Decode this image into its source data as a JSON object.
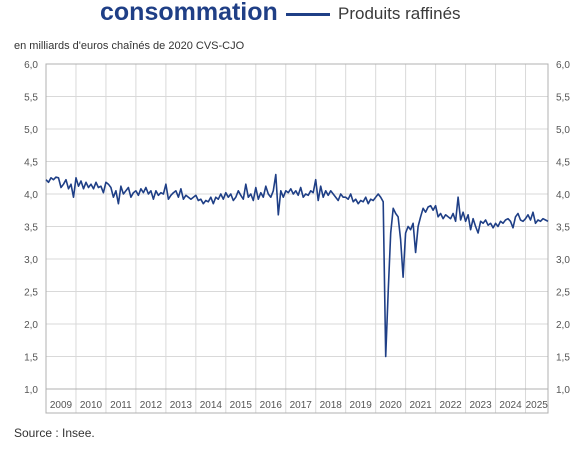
{
  "header": {
    "title": "consommation",
    "legend_label": "Produits raffinés"
  },
  "unit_label": "en milliards d'euros chaînés de 2020 CVS-CJO",
  "source": "Source : Insee.",
  "colors": {
    "series": "#1f3f86",
    "grid": "#d9d9d9",
    "axis_text": "#555555",
    "frame": "#b0b0b0"
  },
  "chart_data": {
    "type": "line",
    "x_start": "2009-01",
    "ylim": [
      1.0,
      6.0
    ],
    "y_ticks": [
      "1,0",
      "1,5",
      "2,0",
      "2,5",
      "3,0",
      "3,5",
      "4,0",
      "4,5",
      "5,0",
      "5,5",
      "6,0"
    ],
    "x_tick_labels": [
      "2009",
      "2010",
      "2011",
      "2012",
      "2013",
      "2014",
      "2015",
      "2016",
      "2017",
      "2018",
      "2019",
      "2020",
      "2021",
      "2022",
      "2023",
      "2024",
      "2025"
    ],
    "grid": true,
    "y_axis_both_sides": true,
    "series": [
      {
        "values": [
          4.22,
          4.18,
          4.25,
          4.22,
          4.26,
          4.25,
          4.1,
          4.15,
          4.22,
          4.08,
          4.15,
          3.95,
          4.25,
          4.12,
          4.2,
          4.08,
          4.18,
          4.1,
          4.15,
          4.08,
          4.18,
          4.1,
          4.12,
          4.02,
          4.18,
          4.15,
          4.1,
          3.95,
          4.05,
          3.85,
          4.12,
          4.0,
          4.05,
          4.1,
          3.95,
          4.02,
          4.05,
          3.98,
          4.08,
          4.02,
          4.1,
          4.0,
          4.05,
          3.92,
          4.05,
          3.98,
          4.02,
          4.0,
          4.15,
          3.92,
          3.98,
          4.02,
          4.05,
          3.95,
          4.08,
          3.92,
          3.98,
          3.95,
          3.92,
          3.95,
          3.98,
          3.9,
          3.92,
          3.85,
          3.9,
          3.88,
          3.95,
          3.85,
          3.95,
          3.92,
          4.0,
          3.92,
          4.02,
          3.95,
          4.0,
          3.9,
          3.95,
          4.05,
          3.98,
          3.92,
          4.15,
          3.95,
          4.0,
          3.9,
          4.1,
          3.92,
          4.02,
          3.95,
          4.12,
          4.0,
          3.95,
          4.05,
          4.3,
          3.68,
          4.05,
          3.95,
          4.05,
          4.02,
          4.08,
          4.0,
          4.05,
          3.98,
          4.1,
          3.95,
          4.0,
          3.98,
          4.05,
          4.02,
          4.22,
          3.9,
          4.12,
          3.95,
          4.05,
          3.98,
          4.05,
          4.0,
          3.95,
          3.9,
          4.0,
          3.95,
          3.95,
          3.92,
          4.0,
          3.88,
          3.92,
          3.85,
          3.9,
          3.88,
          3.95,
          3.85,
          3.92,
          3.9,
          3.95,
          4.0,
          3.95,
          3.88,
          1.5,
          2.5,
          3.4,
          3.78,
          3.7,
          3.65,
          3.3,
          2.72,
          3.4,
          3.5,
          3.45,
          3.55,
          3.1,
          3.5,
          3.65,
          3.78,
          3.72,
          3.8,
          3.82,
          3.75,
          3.82,
          3.65,
          3.7,
          3.62,
          3.68,
          3.65,
          3.62,
          3.7,
          3.58,
          3.95,
          3.6,
          3.72,
          3.58,
          3.68,
          3.45,
          3.62,
          3.5,
          3.4,
          3.58,
          3.55,
          3.6,
          3.52,
          3.55,
          3.48,
          3.55,
          3.5,
          3.58,
          3.55,
          3.6,
          3.62,
          3.58,
          3.48,
          3.65,
          3.7,
          3.6,
          3.58,
          3.62,
          3.68,
          3.6,
          3.72,
          3.55,
          3.6,
          3.58,
          3.62,
          3.6,
          3.58
        ]
      }
    ]
  }
}
